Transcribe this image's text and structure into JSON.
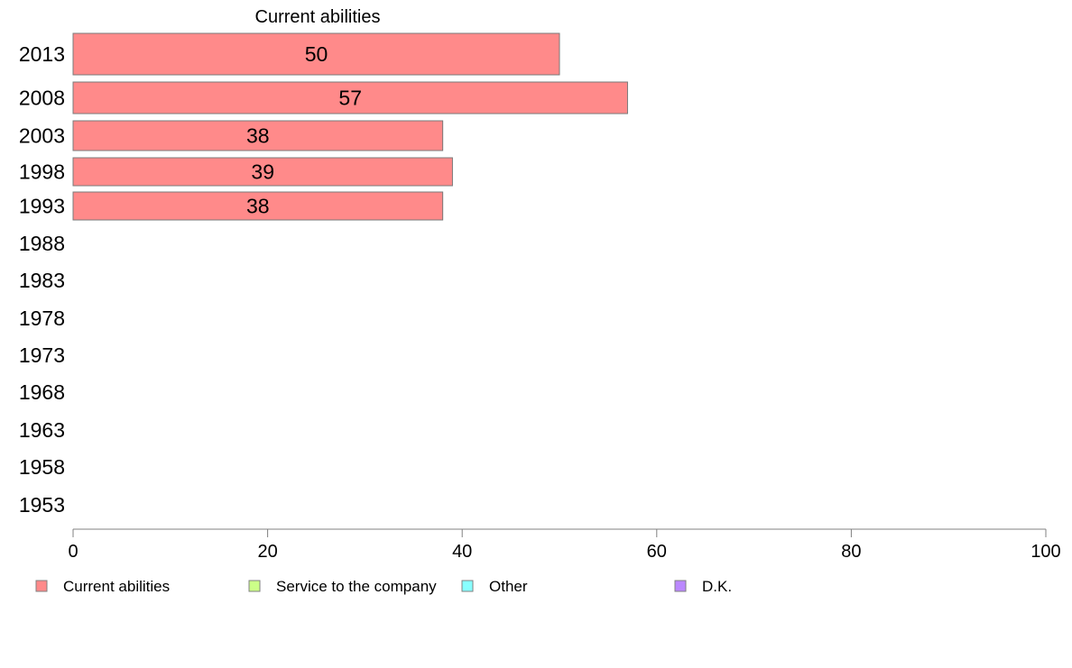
{
  "chart_data": {
    "type": "bar",
    "orientation": "horizontal",
    "title": "Current abilities",
    "categories": [
      "2013",
      "2008",
      "2003",
      "1998",
      "1993",
      "1988",
      "1983",
      "1978",
      "1973",
      "1968",
      "1963",
      "1958",
      "1953"
    ],
    "series": [
      {
        "name": "Current abilities",
        "color": "#ff8a8a",
        "values": [
          50,
          57,
          38,
          39,
          38,
          null,
          null,
          null,
          null,
          null,
          null,
          null,
          null
        ]
      }
    ],
    "data_labels": [
      "50",
      "57",
      "38",
      "39",
      "38"
    ],
    "xlim": [
      0,
      100
    ],
    "x_ticks": [
      0,
      20,
      40,
      60,
      80,
      100
    ],
    "grid": false,
    "legend": {
      "position": "bottom",
      "entries": [
        {
          "label": "Current abilities",
          "color": "#ff8a8a"
        },
        {
          "label": "Service to the company",
          "color": "#ccff88"
        },
        {
          "label": "Other",
          "color": "#88ffff"
        },
        {
          "label": "D.K.",
          "color": "#bb88ff"
        }
      ]
    }
  }
}
